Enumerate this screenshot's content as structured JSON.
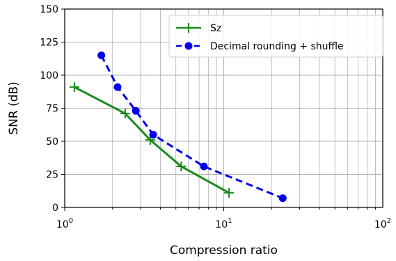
{
  "chart_data": {
    "type": "line",
    "xlabel": "Compression ratio",
    "ylabel": "SNR (dB)",
    "xscale": "log",
    "xlim": [
      1,
      100
    ],
    "ylim": [
      0,
      150
    ],
    "grid": true,
    "legend_position": "upper-right",
    "x_ticks": [
      {
        "value": 1,
        "base": "10",
        "exp": "0"
      },
      {
        "value": 10,
        "base": "10",
        "exp": "1"
      },
      {
        "value": 100,
        "base": "10",
        "exp": "2"
      }
    ],
    "y_ticks": [
      0,
      25,
      50,
      75,
      100,
      125,
      150
    ],
    "series": [
      {
        "name": "Sz",
        "color": "#1a8a1a",
        "line_style": "solid",
        "marker": "plus",
        "x": [
          1.15,
          2.4,
          3.45,
          5.4,
          10.8
        ],
        "y": [
          91,
          71,
          51,
          31,
          11
        ]
      },
      {
        "name": "Decimal rounding + shuffle",
        "color": "#0000ee",
        "line_style": "dashed",
        "marker": "circle",
        "x": [
          1.7,
          2.15,
          2.8,
          3.6,
          7.5,
          23.5
        ],
        "y": [
          115,
          91,
          73,
          55,
          31,
          7
        ]
      }
    ]
  }
}
